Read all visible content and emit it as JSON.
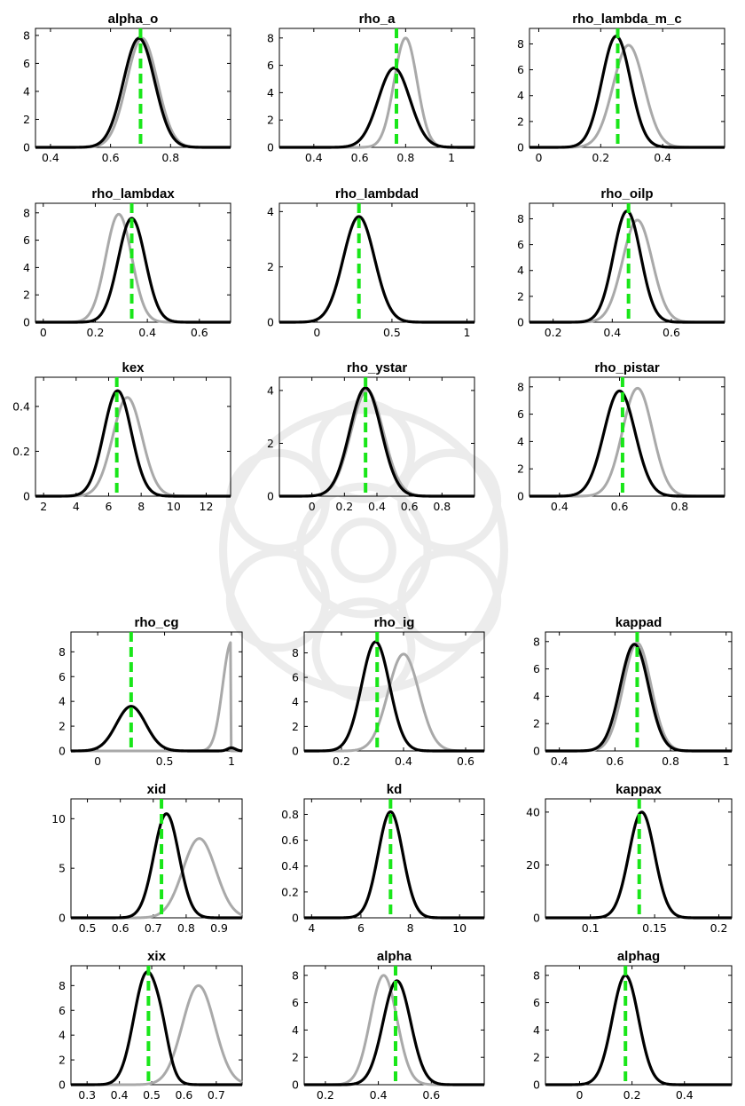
{
  "colors": {
    "prior": "#a9a9a9",
    "posterior": "#000000",
    "mode": "#19e619"
  },
  "chart_data": [
    {
      "type": "line",
      "title": "alpha_o",
      "xlim": [
        0.35,
        1.0
      ],
      "ylim": [
        0,
        8.5
      ],
      "xticks": [
        0.4,
        0.6,
        0.8
      ],
      "yticks": [
        0,
        2,
        4,
        6,
        8
      ],
      "series": [
        {
          "role": "prior",
          "components": [
            {
              "mu": 0.705,
              "sd": 0.051,
              "peak": 7.8
            }
          ]
        },
        {
          "role": "posterior",
          "components": [
            {
              "mu": 0.695,
              "sd": 0.052,
              "peak": 7.8
            }
          ]
        }
      ],
      "mode": 0.7
    },
    {
      "type": "line",
      "title": "rho_a",
      "xlim": [
        0.25,
        1.1
      ],
      "ylim": [
        0,
        8.7
      ],
      "xticks": [
        0.4,
        0.6,
        0.8,
        1
      ],
      "yticks": [
        0,
        2,
        4,
        6,
        8
      ],
      "series": [
        {
          "role": "prior",
          "components": [
            {
              "mu": 0.8,
              "sd": 0.05,
              "peak": 8.0
            }
          ]
        },
        {
          "role": "posterior",
          "components": [
            {
              "mu": 0.75,
              "sd": 0.069,
              "peak": 5.8
            }
          ]
        }
      ],
      "mode": 0.76
    },
    {
      "type": "line",
      "title": "rho_lambda_m_c",
      "xlim": [
        -0.03,
        0.6
      ],
      "ylim": [
        0,
        9.2
      ],
      "xticks": [
        0,
        0.2,
        0.4
      ],
      "yticks": [
        0,
        2,
        4,
        6,
        8
      ],
      "series": [
        {
          "role": "prior",
          "components": [
            {
              "mu": 0.29,
              "sd": 0.05,
              "peak": 7.9
            }
          ]
        },
        {
          "role": "posterior",
          "components": [
            {
              "mu": 0.25,
              "sd": 0.046,
              "peak": 8.6
            }
          ]
        }
      ],
      "mode": 0.255
    },
    {
      "type": "line",
      "title": "rho_lambdax",
      "xlim": [
        -0.03,
        0.72
      ],
      "ylim": [
        0,
        8.7
      ],
      "xticks": [
        0,
        0.2,
        0.4,
        0.6
      ],
      "yticks": [
        0,
        2,
        4,
        6,
        8
      ],
      "series": [
        {
          "role": "prior",
          "components": [
            {
              "mu": 0.29,
              "sd": 0.05,
              "peak": 7.9
            }
          ]
        },
        {
          "role": "posterior",
          "components": [
            {
              "mu": 0.34,
              "sd": 0.052,
              "peak": 7.6
            }
          ]
        }
      ],
      "mode": 0.34
    },
    {
      "type": "line",
      "title": "rho_lambdad",
      "xlim": [
        -0.25,
        1.05
      ],
      "ylim": [
        0,
        4.3
      ],
      "xticks": [
        0,
        0.5,
        1
      ],
      "yticks": [
        0,
        2,
        4
      ],
      "series": [
        {
          "role": "prior",
          "components": [
            {
              "mu": 0.28,
              "sd": 0.104,
              "peak": 3.82
            }
          ]
        },
        {
          "role": "posterior",
          "components": [
            {
              "mu": 0.28,
              "sd": 0.104,
              "peak": 3.82
            }
          ]
        }
      ],
      "mode": 0.28
    },
    {
      "type": "line",
      "title": "rho_oilp",
      "xlim": [
        0.12,
        0.78
      ],
      "ylim": [
        0,
        9.2
      ],
      "xticks": [
        0.2,
        0.4,
        0.6
      ],
      "yticks": [
        0,
        2,
        4,
        6,
        8
      ],
      "series": [
        {
          "role": "prior",
          "components": [
            {
              "mu": 0.485,
              "sd": 0.05,
              "peak": 7.9
            }
          ]
        },
        {
          "role": "posterior",
          "components": [
            {
              "mu": 0.45,
              "sd": 0.046,
              "peak": 8.6
            }
          ]
        }
      ],
      "mode": 0.455
    },
    {
      "type": "line",
      "title": "kex",
      "xlim": [
        1.5,
        13.5
      ],
      "ylim": [
        0,
        0.53
      ],
      "xticks": [
        2,
        4,
        6,
        8,
        10,
        12
      ],
      "yticks": [
        0,
        0.2,
        0.4
      ],
      "series": [
        {
          "role": "prior",
          "components": [
            {
              "mu": 7.15,
              "sd": 0.9,
              "peak": 0.44
            }
          ]
        },
        {
          "role": "posterior",
          "components": [
            {
              "mu": 6.55,
              "sd": 0.85,
              "peak": 0.47
            }
          ]
        }
      ],
      "mode": 6.5
    },
    {
      "type": "line",
      "title": "rho_ystar",
      "xlim": [
        -0.2,
        1.0
      ],
      "ylim": [
        0,
        4.5
      ],
      "xticks": [
        0,
        0.2,
        0.4,
        0.6,
        0.8
      ],
      "yticks": [
        0,
        2,
        4
      ],
      "series": [
        {
          "role": "prior",
          "components": [
            {
              "mu": 0.34,
              "sd": 0.1,
              "peak": 4.0
            }
          ]
        },
        {
          "role": "posterior",
          "components": [
            {
              "mu": 0.33,
              "sd": 0.097,
              "peak": 4.1
            }
          ]
        }
      ],
      "mode": 0.33
    },
    {
      "type": "line",
      "title": "rho_pistar",
      "xlim": [
        0.3,
        0.95
      ],
      "ylim": [
        0,
        8.7
      ],
      "xticks": [
        0.4,
        0.6,
        0.8
      ],
      "yticks": [
        0,
        2,
        4,
        6,
        8
      ],
      "series": [
        {
          "role": "prior",
          "components": [
            {
              "mu": 0.66,
              "sd": 0.05,
              "peak": 7.9
            }
          ]
        },
        {
          "role": "posterior",
          "components": [
            {
              "mu": 0.6,
              "sd": 0.052,
              "peak": 7.7
            }
          ]
        }
      ],
      "mode": 0.61
    },
    {
      "type": "line",
      "title": "rho_cg",
      "xlim": [
        -0.2,
        1.08
      ],
      "ylim": [
        0,
        9.6
      ],
      "xticks": [
        0,
        0.5,
        1
      ],
      "yticks": [
        0,
        2,
        4,
        6,
        8
      ],
      "series": [
        {
          "role": "prior",
          "components": [
            {
              "mu": 1.0,
              "sd": 0.065,
              "peak": 8.8,
              "right_cut": 0.997
            }
          ]
        },
        {
          "role": "posterior",
          "components": [
            {
              "mu": 0.25,
              "sd": 0.11,
              "peak": 3.6
            },
            {
              "mu": 1.0,
              "sd": 0.03,
              "peak": 0.25
            }
          ]
        }
      ],
      "mode": 0.25
    },
    {
      "type": "line",
      "title": "rho_ig",
      "xlim": [
        0.08,
        0.66
      ],
      "ylim": [
        0,
        9.7
      ],
      "xticks": [
        0.2,
        0.4,
        0.6
      ],
      "yticks": [
        0,
        2,
        4,
        6,
        8
      ],
      "series": [
        {
          "role": "prior",
          "components": [
            {
              "mu": 0.4,
              "sd": 0.05,
              "peak": 7.9
            }
          ]
        },
        {
          "role": "posterior",
          "components": [
            {
              "mu": 0.31,
              "sd": 0.045,
              "peak": 8.9
            }
          ]
        }
      ],
      "mode": 0.315
    },
    {
      "type": "line",
      "title": "kappad",
      "xlim": [
        0.35,
        1.02
      ],
      "ylim": [
        0,
        8.7
      ],
      "xticks": [
        0.4,
        0.6,
        0.8,
        1
      ],
      "yticks": [
        0,
        2,
        4,
        6,
        8
      ],
      "series": [
        {
          "role": "prior",
          "components": [
            {
              "mu": 0.68,
              "sd": 0.05,
              "peak": 7.9
            }
          ]
        },
        {
          "role": "posterior",
          "components": [
            {
              "mu": 0.67,
              "sd": 0.051,
              "peak": 7.8
            }
          ]
        }
      ],
      "mode": 0.68
    },
    {
      "type": "line",
      "title": "xid",
      "xlim": [
        0.45,
        0.97
      ],
      "ylim": [
        0,
        12.0
      ],
      "xticks": [
        0.5,
        0.6,
        0.7,
        0.8,
        0.9
      ],
      "yticks": [
        0,
        5,
        10
      ],
      "series": [
        {
          "role": "prior",
          "components": [
            {
              "mu": 0.84,
              "sd": 0.05,
              "peak": 8.0
            }
          ]
        },
        {
          "role": "posterior",
          "components": [
            {
              "mu": 0.74,
              "sd": 0.038,
              "peak": 10.5
            }
          ]
        }
      ],
      "mode": 0.725
    },
    {
      "type": "line",
      "title": "kd",
      "xlim": [
        3.7,
        11.0
      ],
      "ylim": [
        0,
        0.92
      ],
      "xticks": [
        4,
        6,
        8,
        10
      ],
      "yticks": [
        0,
        0.2,
        0.4,
        0.6,
        0.8
      ],
      "series": [
        {
          "role": "prior",
          "components": [
            {
              "mu": 7.2,
              "sd": 0.5,
              "peak": 0.82
            }
          ]
        },
        {
          "role": "posterior",
          "components": [
            {
              "mu": 7.2,
              "sd": 0.5,
              "peak": 0.82
            }
          ]
        }
      ],
      "mode": 7.2
    },
    {
      "type": "line",
      "title": "kappax",
      "xlim": [
        0.065,
        0.21
      ],
      "ylim": [
        0,
        45.0
      ],
      "xticks": [
        0.1,
        0.15,
        0.2
      ],
      "yticks": [
        0,
        20,
        40
      ],
      "series": [
        {
          "role": "prior",
          "components": [
            {
              "mu": 0.14,
              "sd": 0.01,
              "peak": 40.0
            }
          ]
        },
        {
          "role": "posterior",
          "components": [
            {
              "mu": 0.14,
              "sd": 0.01,
              "peak": 40.0
            }
          ]
        }
      ],
      "mode": 0.138
    },
    {
      "type": "line",
      "title": "xix",
      "xlim": [
        0.25,
        0.78
      ],
      "ylim": [
        0,
        9.6
      ],
      "xticks": [
        0.3,
        0.4,
        0.5,
        0.6,
        0.7
      ],
      "yticks": [
        0,
        2,
        4,
        6,
        8
      ],
      "series": [
        {
          "role": "prior",
          "components": [
            {
              "mu": 0.645,
              "sd": 0.05,
              "peak": 8.0
            }
          ]
        },
        {
          "role": "posterior",
          "components": [
            {
              "mu": 0.485,
              "sd": 0.04,
              "peak": 9.0
            },
            {
              "mu": 0.535,
              "sd": 0.022,
              "peak": 1.4
            }
          ]
        }
      ],
      "mode": 0.49
    },
    {
      "type": "line",
      "title": "alpha",
      "xlim": [
        0.12,
        0.8
      ],
      "ylim": [
        0,
        8.7
      ],
      "xticks": [
        0.2,
        0.4,
        0.6
      ],
      "yticks": [
        0,
        2,
        4,
        6,
        8
      ],
      "series": [
        {
          "role": "prior",
          "components": [
            {
              "mu": 0.42,
              "sd": 0.05,
              "peak": 8.0
            }
          ]
        },
        {
          "role": "posterior",
          "components": [
            {
              "mu": 0.47,
              "sd": 0.052,
              "peak": 7.6
            }
          ]
        }
      ],
      "mode": 0.465
    },
    {
      "type": "line",
      "title": "alphag",
      "xlim": [
        -0.13,
        0.58
      ],
      "ylim": [
        0,
        8.7
      ],
      "xticks": [
        0,
        0.2,
        0.4
      ],
      "yticks": [
        0,
        2,
        4,
        6,
        8
      ],
      "series": [
        {
          "role": "prior",
          "components": [
            {
              "mu": 0.175,
              "sd": 0.05,
              "peak": 8.0
            }
          ]
        },
        {
          "role": "posterior",
          "components": [
            {
              "mu": 0.175,
              "sd": 0.05,
              "peak": 8.0
            }
          ]
        }
      ],
      "mode": 0.175
    }
  ]
}
